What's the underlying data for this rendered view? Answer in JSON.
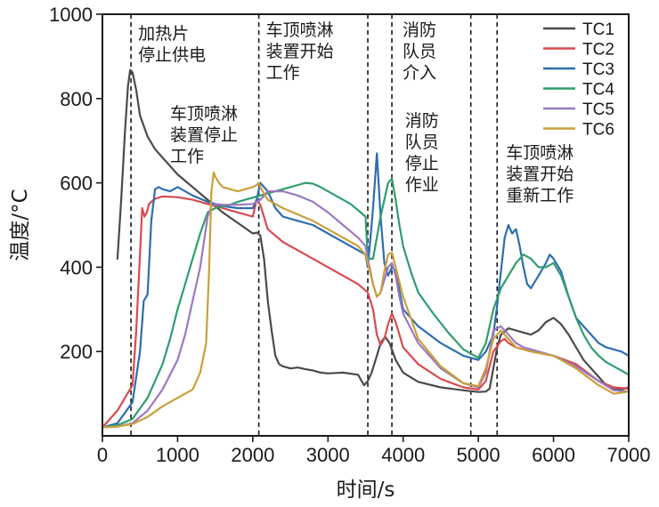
{
  "chart_data": {
    "type": "line",
    "title": "",
    "xlabel": "时间/s",
    "ylabel": "温度/°C",
    "xlim": [
      0,
      7000
    ],
    "ylim": [
      0,
      1000
    ],
    "xticks": [
      0,
      1000,
      2000,
      3000,
      4000,
      5000,
      6000,
      7000
    ],
    "xtick_labels": [
      "0",
      "1000",
      "2000",
      "3000",
      "4000",
      "5000",
      "6000",
      "7000"
    ],
    "yticks": [
      200,
      400,
      600,
      800,
      1000
    ],
    "ytick_labels": [
      "200",
      "400",
      "600",
      "800",
      "1000"
    ],
    "grid": false,
    "legend_position": "top-right",
    "event_lines": [
      {
        "x": 380,
        "label": [
          "加热片",
          "停止供电"
        ]
      },
      {
        "x": 2080,
        "label": [
          "车顶喷淋",
          "装置开始",
          "工作"
        ]
      },
      {
        "x": 3530,
        "label": [
          "车顶喷淋",
          "装置停止",
          "工作"
        ]
      },
      {
        "x": 3850,
        "label": [
          "消防",
          "队员",
          "介入"
        ]
      },
      {
        "x": 4900,
        "label": [
          "消防",
          "队员",
          "停止",
          "作业"
        ]
      },
      {
        "x": 5250,
        "label": [
          "车顶喷淋",
          "装置开始",
          "重新工作"
        ]
      }
    ],
    "series": [
      {
        "name": "TC1",
        "color": "#4a4a4a",
        "x": [
          200,
          250,
          300,
          340,
          370,
          400,
          450,
          500,
          600,
          700,
          800,
          900,
          1000,
          1200,
          1400,
          1600,
          1800,
          2000,
          2060,
          2100,
          2150,
          2200,
          2250,
          2300,
          2350,
          2400,
          2500,
          2600,
          2700,
          2800,
          2900,
          3000,
          3200,
          3400,
          3480,
          3530,
          3580,
          3650,
          3700,
          3760,
          3820,
          3900,
          4000,
          4200,
          4500,
          4800,
          5000,
          5100,
          5150,
          5200,
          5250,
          5300,
          5400,
          5500,
          5600,
          5700,
          5800,
          5900,
          6000,
          6100,
          6200,
          6300,
          6400,
          6500,
          6600,
          6700,
          6800,
          6900,
          7000
        ],
        "y": [
          420,
          560,
          720,
          830,
          868,
          862,
          820,
          760,
          710,
          680,
          660,
          640,
          620,
          590,
          560,
          530,
          505,
          480,
          482,
          475,
          420,
          320,
          250,
          190,
          170,
          165,
          160,
          162,
          158,
          155,
          150,
          148,
          150,
          145,
          120,
          130,
          150,
          190,
          220,
          235,
          220,
          180,
          150,
          128,
          115,
          108,
          104,
          105,
          112,
          160,
          210,
          240,
          255,
          250,
          245,
          240,
          250,
          270,
          280,
          265,
          240,
          210,
          180,
          160,
          140,
          120,
          110,
          110,
          115
        ]
      },
      {
        "name": "TC2",
        "color": "#d94a4f",
        "x": [
          0,
          200,
          400,
          450,
          500,
          530,
          560,
          590,
          620,
          650,
          700,
          750,
          800,
          1000,
          1200,
          1400,
          1600,
          1800,
          2000,
          2050,
          2100,
          2200,
          2400,
          2600,
          2800,
          3000,
          3200,
          3400,
          3530,
          3600,
          3650,
          3700,
          3750,
          3800,
          3850,
          3900,
          3950,
          4000,
          4200,
          4500,
          4800,
          5000,
          5100,
          5200,
          5300,
          5350,
          5400,
          5500,
          5600,
          5700,
          6000,
          6300,
          6600,
          6800,
          7000
        ],
        "y": [
          20,
          60,
          120,
          250,
          430,
          540,
          520,
          530,
          550,
          555,
          562,
          565,
          568,
          566,
          560,
          550,
          540,
          530,
          520,
          560,
          548,
          490,
          460,
          440,
          420,
          400,
          380,
          360,
          340,
          300,
          240,
          215,
          230,
          265,
          290,
          270,
          240,
          210,
          170,
          135,
          115,
          110,
          130,
          200,
          225,
          230,
          220,
          210,
          205,
          200,
          190,
          170,
          130,
          115,
          112
        ]
      },
      {
        "name": "TC3",
        "color": "#2e6db0",
        "x": [
          0,
          200,
          400,
          500,
          550,
          600,
          650,
          700,
          750,
          800,
          900,
          1000,
          1100,
          1200,
          1400,
          1600,
          1800,
          2000,
          2050,
          2100,
          2200,
          2300,
          2400,
          2600,
          2800,
          3000,
          3200,
          3400,
          3500,
          3530,
          3560,
          3600,
          3650,
          3700,
          3750,
          3800,
          3850,
          3900,
          4000,
          4200,
          4500,
          4800,
          5000,
          5100,
          5200,
          5250,
          5300,
          5350,
          5400,
          5450,
          5500,
          5550,
          5600,
          5650,
          5700,
          5800,
          5900,
          5950,
          6000,
          6100,
          6200,
          6300,
          6400,
          6500,
          6600,
          6700,
          6800,
          6900,
          7000
        ],
        "y": [
          20,
          30,
          80,
          200,
          320,
          335,
          510,
          585,
          590,
          585,
          580,
          590,
          580,
          570,
          555,
          545,
          540,
          540,
          560,
          600,
          580,
          540,
          520,
          510,
          500,
          480,
          460,
          440,
          430,
          400,
          460,
          540,
          670,
          520,
          410,
          380,
          400,
          390,
          300,
          260,
          220,
          190,
          180,
          200,
          240,
          310,
          390,
          470,
          500,
          480,
          490,
          450,
          400,
          360,
          350,
          380,
          410,
          430,
          420,
          390,
          330,
          280,
          260,
          240,
          220,
          210,
          205,
          200,
          190
        ]
      },
      {
        "name": "TC4",
        "color": "#2e9e6b",
        "x": [
          0,
          200,
          400,
          600,
          800,
          900,
          1000,
          1100,
          1200,
          1300,
          1400,
          1500,
          1600,
          1700,
          1800,
          1900,
          2000,
          2100,
          2200,
          2300,
          2400,
          2500,
          2600,
          2700,
          2800,
          2900,
          3000,
          3100,
          3200,
          3300,
          3400,
          3500,
          3530,
          3600,
          3700,
          3750,
          3800,
          3850,
          3900,
          3950,
          4000,
          4100,
          4200,
          4400,
          4600,
          4800,
          5000,
          5100,
          5200,
          5300,
          5400,
          5500,
          5600,
          5700,
          5800,
          5900,
          6000,
          6100,
          6200,
          6300,
          6400,
          6500,
          6600,
          6700,
          6800,
          6900,
          7000
        ],
        "y": [
          20,
          25,
          40,
          90,
          170,
          230,
          300,
          360,
          420,
          480,
          530,
          540,
          545,
          548,
          555,
          560,
          565,
          570,
          575,
          580,
          585,
          590,
          595,
          600,
          598,
          590,
          580,
          570,
          560,
          550,
          535,
          520,
          420,
          420,
          520,
          560,
          600,
          610,
          560,
          500,
          450,
          390,
          340,
          290,
          245,
          205,
          185,
          220,
          300,
          350,
          380,
          410,
          430,
          420,
          400,
          400,
          410,
          380,
          330,
          280,
          240,
          210,
          190,
          175,
          165,
          155,
          145
        ]
      },
      {
        "name": "TC5",
        "color": "#9a78c2",
        "x": [
          0,
          200,
          400,
          600,
          800,
          1000,
          1100,
          1200,
          1300,
          1350,
          1400,
          1450,
          1500,
          1600,
          1800,
          2000,
          2100,
          2200,
          2400,
          2600,
          2800,
          3000,
          3200,
          3400,
          3500,
          3530,
          3600,
          3650,
          3700,
          3750,
          3800,
          3850,
          3900,
          3950,
          4000,
          4200,
          4500,
          4800,
          5000,
          5100,
          5200,
          5300,
          5400,
          5500,
          5600,
          5700,
          6000,
          6300,
          6600,
          6800,
          7000
        ],
        "y": [
          20,
          22,
          30,
          60,
          110,
          180,
          240,
          320,
          400,
          460,
          520,
          545,
          550,
          548,
          548,
          550,
          560,
          580,
          580,
          570,
          555,
          530,
          500,
          470,
          450,
          420,
          360,
          330,
          340,
          370,
          400,
          410,
          380,
          330,
          290,
          220,
          160,
          125,
          115,
          150,
          250,
          260,
          240,
          220,
          210,
          205,
          190,
          165,
          130,
          108,
          105
        ]
      },
      {
        "name": "TC6",
        "color": "#c9a03a",
        "x": [
          0,
          200,
          400,
          600,
          800,
          1000,
          1200,
          1300,
          1380,
          1420,
          1450,
          1480,
          1500,
          1550,
          1600,
          1700,
          1800,
          1900,
          2000,
          2050,
          2080,
          2100,
          2200,
          2400,
          2600,
          2800,
          3000,
          3200,
          3400,
          3500,
          3530,
          3600,
          3650,
          3700,
          3750,
          3800,
          3850,
          3900,
          4000,
          4200,
          4500,
          4800,
          5000,
          5100,
          5200,
          5300,
          5400,
          5500,
          5600,
          5700,
          6000,
          6300,
          6600,
          6800,
          7000
        ],
        "y": [
          20,
          22,
          28,
          45,
          70,
          90,
          110,
          150,
          220,
          400,
          580,
          625,
          615,
          600,
          590,
          585,
          580,
          585,
          590,
          595,
          600,
          590,
          560,
          540,
          525,
          510,
          490,
          470,
          450,
          430,
          410,
          360,
          330,
          340,
          390,
          430,
          435,
          400,
          330,
          230,
          165,
          125,
          118,
          160,
          230,
          250,
          230,
          210,
          205,
          200,
          190,
          160,
          120,
          100,
          105
        ]
      }
    ]
  }
}
